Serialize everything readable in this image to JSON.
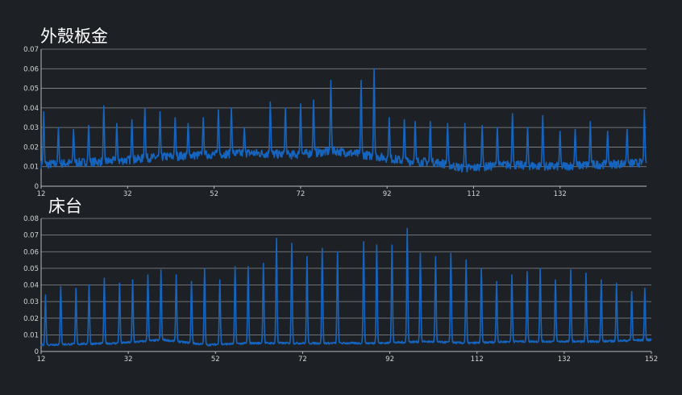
{
  "colors": {
    "background": "#1d2024",
    "line": "#1565c0",
    "grid": "#8a8d90",
    "text": "#d4d4d4"
  },
  "chart_data": [
    {
      "type": "line",
      "title": "外殼板金",
      "xlabel": "",
      "ylabel": "",
      "xlim": [
        12,
        152
      ],
      "ylim": [
        0,
        0.07
      ],
      "xticks": [
        12,
        32,
        52,
        72,
        92,
        112,
        132
      ],
      "xtick_labels": [
        "12",
        "32",
        "52",
        "72",
        "92",
        "112",
        "132"
      ],
      "yticks": [
        0,
        0.01,
        0.02,
        0.03,
        0.04,
        0.05,
        0.06,
        0.07
      ],
      "ytick_labels": [
        "0",
        "0.01",
        "0.02",
        "0.03",
        "0.04",
        "0.05",
        "0.06",
        "0.07"
      ],
      "grid": true,
      "legend": "none",
      "series": [
        {
          "baseline": [
            [
              12,
              0.011
            ],
            [
              20,
              0.012
            ],
            [
              30,
              0.013
            ],
            [
              40,
              0.015
            ],
            [
              50,
              0.016
            ],
            [
              60,
              0.017
            ],
            [
              70,
              0.016
            ],
            [
              80,
              0.018
            ],
            [
              90,
              0.015
            ],
            [
              96,
              0.013
            ],
            [
              104,
              0.012
            ],
            [
              110,
              0.009
            ],
            [
              120,
              0.011
            ],
            [
              130,
              0.01
            ],
            [
              140,
              0.011
            ],
            [
              152,
              0.012
            ]
          ],
          "peaks": [
            [
              12.6,
              0.038
            ],
            [
              16,
              0.03
            ],
            [
              19.5,
              0.029
            ],
            [
              23,
              0.031
            ],
            [
              26.5,
              0.041
            ],
            [
              29.5,
              0.032
            ],
            [
              33,
              0.034
            ],
            [
              36,
              0.04
            ],
            [
              39.5,
              0.038
            ],
            [
              43,
              0.035
            ],
            [
              46,
              0.032
            ],
            [
              49.5,
              0.035
            ],
            [
              53,
              0.039
            ],
            [
              56,
              0.04
            ],
            [
              59,
              0.03
            ],
            [
              65,
              0.043
            ],
            [
              68.5,
              0.04
            ],
            [
              72,
              0.042
            ],
            [
              75,
              0.044
            ],
            [
              79,
              0.054
            ],
            [
              86,
              0.054
            ],
            [
              89,
              0.06
            ],
            [
              92.5,
              0.035
            ],
            [
              96,
              0.034
            ],
            [
              98.5,
              0.033
            ],
            [
              102,
              0.033
            ],
            [
              106,
              0.032
            ],
            [
              110,
              0.032
            ],
            [
              114,
              0.031
            ],
            [
              117.5,
              0.03
            ],
            [
              121,
              0.037
            ],
            [
              124.5,
              0.03
            ],
            [
              128,
              0.036
            ],
            [
              132,
              0.028
            ],
            [
              135.5,
              0.029
            ],
            [
              139,
              0.033
            ],
            [
              143,
              0.028
            ],
            [
              147.5,
              0.029
            ],
            [
              151.5,
              0.039
            ]
          ]
        }
      ]
    },
    {
      "type": "line",
      "title": "床台",
      "xlabel": "",
      "ylabel": "",
      "xlim": [
        12,
        152
      ],
      "ylim": [
        0,
        0.08
      ],
      "xticks": [
        12,
        32,
        52,
        72,
        92,
        112,
        132,
        152
      ],
      "xtick_labels": [
        "12",
        "32",
        "52",
        "72",
        "92",
        "112",
        "132",
        "152"
      ],
      "yticks": [
        0,
        0.01,
        0.02,
        0.03,
        0.04,
        0.05,
        0.06,
        0.07,
        0.08
      ],
      "ytick_labels": [
        "0",
        "0.01",
        "0.02",
        "0.03",
        "0.04",
        "0.05",
        "0.06",
        "0.07",
        "0.08"
      ],
      "grid": true,
      "legend": "none",
      "series": [
        {
          "baseline": [
            [
              12,
              0.004
            ],
            [
              30,
              0.005
            ],
            [
              40,
              0.007
            ],
            [
              50,
              0.004
            ],
            [
              60,
              0.005
            ],
            [
              70,
              0.005
            ],
            [
              80,
              0.005
            ],
            [
              90,
              0.005
            ],
            [
              100,
              0.006
            ],
            [
              110,
              0.005
            ],
            [
              120,
              0.006
            ],
            [
              130,
              0.006
            ],
            [
              140,
              0.006
            ],
            [
              152,
              0.007
            ]
          ],
          "peaks": [
            [
              13,
              0.034
            ],
            [
              16.5,
              0.039
            ],
            [
              20,
              0.038
            ],
            [
              23,
              0.04
            ],
            [
              26.5,
              0.044
            ],
            [
              30,
              0.041
            ],
            [
              33,
              0.043
            ],
            [
              36.5,
              0.046
            ],
            [
              39.5,
              0.049
            ],
            [
              43,
              0.046
            ],
            [
              46.5,
              0.042
            ],
            [
              49.5,
              0.05
            ],
            [
              53,
              0.043
            ],
            [
              56.5,
              0.051
            ],
            [
              59.5,
              0.051
            ],
            [
              63,
              0.053
            ],
            [
              66,
              0.068
            ],
            [
              69.5,
              0.065
            ],
            [
              73,
              0.057
            ],
            [
              76.5,
              0.062
            ],
            [
              80,
              0.06
            ],
            [
              86,
              0.066
            ],
            [
              89,
              0.064
            ],
            [
              92.5,
              0.064
            ],
            [
              96,
              0.074
            ],
            [
              99,
              0.059
            ],
            [
              102.5,
              0.057
            ],
            [
              106,
              0.059
            ],
            [
              109.5,
              0.055
            ],
            [
              113,
              0.05
            ],
            [
              116.5,
              0.042
            ],
            [
              120,
              0.046
            ],
            [
              123.5,
              0.048
            ],
            [
              126.5,
              0.05
            ],
            [
              130,
              0.043
            ],
            [
              133.5,
              0.049
            ],
            [
              137,
              0.047
            ],
            [
              140.5,
              0.043
            ],
            [
              144,
              0.041
            ],
            [
              147.5,
              0.036
            ],
            [
              150.5,
              0.038
            ]
          ]
        }
      ]
    }
  ]
}
